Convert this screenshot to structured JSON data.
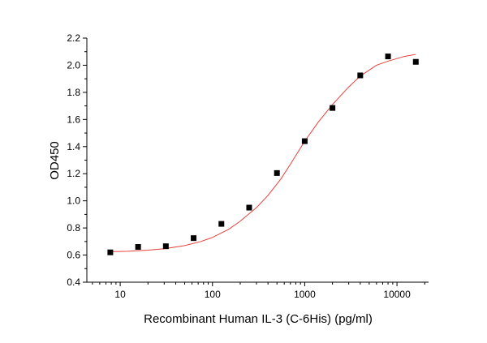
{
  "chart_data": {
    "type": "scatter",
    "xlabel": "Recombinant Human IL-3 (C-6His) (pg/ml)",
    "ylabel": "OD450",
    "xscale": "log",
    "xlim": [
      4.35,
      22000
    ],
    "xticks": [
      10,
      100,
      1000,
      10000
    ],
    "xminorticks": [
      5,
      6,
      7,
      8,
      9,
      20,
      30,
      40,
      50,
      60,
      70,
      80,
      90,
      200,
      300,
      400,
      500,
      600,
      700,
      800,
      900,
      2000,
      3000,
      4000,
      5000,
      6000,
      7000,
      8000,
      9000,
      20000
    ],
    "ylim": [
      0.4,
      2.2
    ],
    "yticks": [
      0.4,
      0.6,
      0.8,
      {
        "value": 1,
        "label": "1.0"
      },
      1.2,
      1.4,
      1.6,
      1.8,
      {
        "value": 2,
        "label": "2.0"
      },
      2.2
    ],
    "yminorticks": [
      0.5,
      0.7,
      0.9,
      1.1,
      1.3,
      1.5,
      1.7,
      1.9,
      2.1
    ],
    "series": [
      {
        "color": "#e8413c",
        "style": "line",
        "x": [
          8,
          12,
          20,
          30,
          50,
          75,
          100,
          150,
          200,
          300,
          400,
          550,
          700,
          1000,
          1400,
          2000,
          3000,
          4000,
          6000,
          8000,
          12000,
          16000
        ],
        "values": [
          0.625,
          0.628,
          0.636,
          0.647,
          0.67,
          0.7,
          0.73,
          0.79,
          0.85,
          0.95,
          1.04,
          1.16,
          1.27,
          1.44,
          1.58,
          1.71,
          1.84,
          1.92,
          2.0,
          2.03,
          2.065,
          2.08
        ]
      },
      {
        "color": "#000000",
        "style": "marker",
        "x": [
          7.8125,
          15.625,
          31.25,
          62.5,
          125,
          250,
          500,
          1000,
          2000,
          4000,
          8000,
          16000
        ],
        "values": [
          0.62,
          0.66,
          0.665,
          0.725,
          0.83,
          0.95,
          1.205,
          1.44,
          1.685,
          1.925,
          2.065,
          2.025
        ]
      }
    ]
  }
}
